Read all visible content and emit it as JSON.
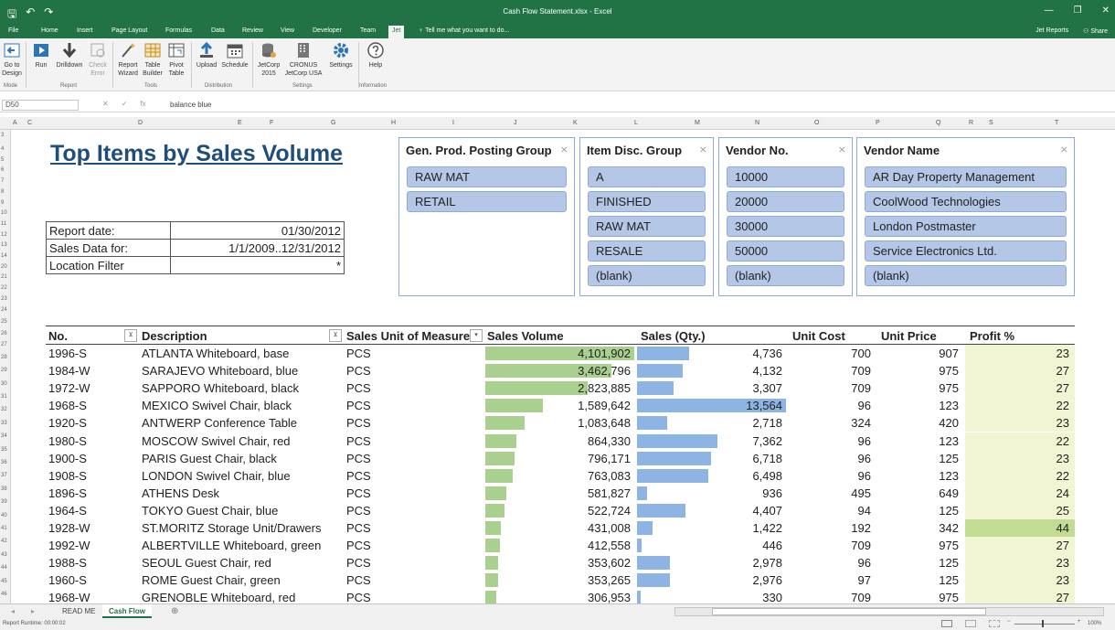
{
  "window": {
    "title": "Cash Flow Statement.xlsx - Excel",
    "minimize_glyph": "—",
    "restore_glyph": "❐",
    "close_glyph": "✕"
  },
  "qat": {
    "save_glyph": "🖫",
    "undo_glyph": "↶",
    "redo_glyph": "↷"
  },
  "tabs": [
    "File",
    "Home",
    "Insert",
    "Page Layout",
    "Formulas",
    "Data",
    "Review",
    "View",
    "Developer",
    "Team",
    "Jet"
  ],
  "tell_me": "Tell me what you want to do...",
  "account": {
    "jet_reports": "Jet Reports",
    "share": "Share"
  },
  "ribbon": {
    "buttons": [
      {
        "label": "Go to\nDesign",
        "icon": "go-to-design-icon"
      },
      {
        "label": "Run",
        "icon": "run-icon"
      },
      {
        "label": "Drilldown",
        "icon": "drilldown-icon"
      },
      {
        "label": "Check\nError",
        "icon": "check-error-icon"
      },
      {
        "label": "Report\nWizard",
        "icon": "report-wizard-icon"
      },
      {
        "label": "Table\nBuilder",
        "icon": "table-builder-icon"
      },
      {
        "label": "Pivot\nTable",
        "icon": "pivot-table-icon"
      },
      {
        "label": "Upload",
        "icon": "upload-icon"
      },
      {
        "label": "Schedule",
        "icon": "schedule-icon"
      },
      {
        "label": "JetCorp\n2015",
        "icon": "database-icon"
      },
      {
        "label": "CRONUS\nJetCorp USA",
        "icon": "company-icon"
      },
      {
        "label": "Settings",
        "icon": "settings-icon"
      },
      {
        "label": "Help",
        "icon": "help-icon"
      }
    ],
    "groups": [
      "Mode",
      "Report",
      "Tools",
      "Distribution",
      "Settings",
      "Information"
    ]
  },
  "formula_bar": {
    "name_box": "D50",
    "fx_label": "fx",
    "value": "balance blue"
  },
  "columns": [
    "A",
    "C",
    "D",
    "E",
    "F",
    "G",
    "H",
    "I",
    "J",
    "K",
    "L",
    "M",
    "N",
    "O",
    "P",
    "Q",
    "R",
    "S",
    "T"
  ],
  "rows": [
    "3",
    "4",
    "5",
    "6",
    "7",
    "8",
    "9",
    "10",
    "11",
    "12",
    "13",
    "14",
    "20",
    "21",
    "22",
    "23",
    "24",
    "25",
    "26",
    "27",
    "28",
    "29",
    "30",
    "31",
    "32",
    "33",
    "34",
    "35",
    "36",
    "37",
    "38",
    "39",
    "40",
    "41",
    "42",
    "43",
    "44",
    "45",
    "46",
    "47"
  ],
  "report": {
    "title": "Top Items by Sales Volume",
    "info": [
      {
        "label": "Report date:",
        "value": "01/30/2012"
      },
      {
        "label": "Sales Data for:",
        "value": "1/1/2009..12/31/2012"
      },
      {
        "label": "Location Filter",
        "value": "*"
      }
    ]
  },
  "slicers": [
    {
      "title": "Gen. Prod. Posting Group",
      "items": [
        "RAW MAT",
        "RETAIL"
      ]
    },
    {
      "title": "Item Disc. Group",
      "items": [
        "A",
        "FINISHED",
        "RAW MAT",
        "RESALE",
        "(blank)"
      ]
    },
    {
      "title": "Vendor No.",
      "items": [
        "10000",
        "20000",
        "30000",
        "50000",
        "(blank)"
      ]
    },
    {
      "title": "Vendor Name",
      "items": [
        "AR Day Property Management",
        "CoolWood Technologies",
        "London Postmaster",
        "Service Electronics Ltd.",
        "(blank)"
      ]
    }
  ],
  "slicer_clear_glyph": "⨯",
  "table": {
    "headers": [
      "No.",
      "Description",
      "Sales Unit of Measure",
      "Sales Volume",
      "Sales (Qty.)",
      "Unit Cost",
      "Unit Price",
      "Profit %"
    ],
    "filter_glyph": "⊻",
    "sort_glyph": "▾",
    "sales_volume_max": 4101902,
    "qty_max": 13564,
    "colors": {
      "volume_bar": "#a9d08e",
      "qty_bar": "#8eb4e3",
      "profit_light": "#f2f5d3",
      "profit_dark": "#c2dc94"
    },
    "rows": [
      {
        "no": "1996-S",
        "desc": "ATLANTA Whiteboard, base",
        "uom": "PCS",
        "volume": "4,101,902",
        "vol": 4101902,
        "qty": "4,736",
        "qn": 4736,
        "cost": "700",
        "price": "907",
        "profit": "23"
      },
      {
        "no": "1984-W",
        "desc": "SARAJEVO Whiteboard, blue",
        "uom": "PCS",
        "volume": "3,462,796",
        "vol": 3462796,
        "qty": "4,132",
        "qn": 4132,
        "cost": "709",
        "price": "975",
        "profit": "27"
      },
      {
        "no": "1972-W",
        "desc": "SAPPORO Whiteboard, black",
        "uom": "PCS",
        "volume": "2,823,885",
        "vol": 2823885,
        "qty": "3,307",
        "qn": 3307,
        "cost": "709",
        "price": "975",
        "profit": "27"
      },
      {
        "no": "1968-S",
        "desc": "MEXICO Swivel Chair, black",
        "uom": "PCS",
        "volume": "1,589,642",
        "vol": 1589642,
        "qty": "13,564",
        "qn": 13564,
        "cost": "96",
        "price": "123",
        "profit": "22"
      },
      {
        "no": "1920-S",
        "desc": "ANTWERP Conference Table",
        "uom": "PCS",
        "volume": "1,083,648",
        "vol": 1083648,
        "qty": "2,718",
        "qn": 2718,
        "cost": "324",
        "price": "420",
        "profit": "23"
      },
      {
        "no": "1980-S",
        "desc": "MOSCOW Swivel Chair, red",
        "uom": "PCS",
        "volume": "864,330",
        "vol": 864330,
        "qty": "7,362",
        "qn": 7362,
        "cost": "96",
        "price": "123",
        "profit": "22"
      },
      {
        "no": "1900-S",
        "desc": "PARIS Guest Chair, black",
        "uom": "PCS",
        "volume": "796,171",
        "vol": 796171,
        "qty": "6,718",
        "qn": 6718,
        "cost": "96",
        "price": "125",
        "profit": "23"
      },
      {
        "no": "1908-S",
        "desc": "LONDON Swivel Chair, blue",
        "uom": "PCS",
        "volume": "763,083",
        "vol": 763083,
        "qty": "6,498",
        "qn": 6498,
        "cost": "96",
        "price": "123",
        "profit": "22"
      },
      {
        "no": "1896-S",
        "desc": "ATHENS Desk",
        "uom": "PCS",
        "volume": "581,827",
        "vol": 581827,
        "qty": "936",
        "qn": 936,
        "cost": "495",
        "price": "649",
        "profit": "24"
      },
      {
        "no": "1964-S",
        "desc": "TOKYO Guest Chair, blue",
        "uom": "PCS",
        "volume": "522,724",
        "vol": 522724,
        "qty": "4,407",
        "qn": 4407,
        "cost": "94",
        "price": "125",
        "profit": "25"
      },
      {
        "no": "1928-W",
        "desc": "ST.MORITZ Storage Unit/Drawers",
        "uom": "PCS",
        "volume": "431,008",
        "vol": 431008,
        "qty": "1,422",
        "qn": 1422,
        "cost": "192",
        "price": "342",
        "profit": "44"
      },
      {
        "no": "1992-W",
        "desc": "ALBERTVILLE Whiteboard, green",
        "uom": "PCS",
        "volume": "412,558",
        "vol": 412558,
        "qty": "446",
        "qn": 446,
        "cost": "709",
        "price": "975",
        "profit": "27"
      },
      {
        "no": "1988-S",
        "desc": "SEOUL Guest Chair, red",
        "uom": "PCS",
        "volume": "353,602",
        "vol": 353602,
        "qty": "2,978",
        "qn": 2978,
        "cost": "96",
        "price": "125",
        "profit": "23"
      },
      {
        "no": "1960-S",
        "desc": "ROME Guest Chair, green",
        "uom": "PCS",
        "volume": "353,265",
        "vol": 353265,
        "qty": "2,976",
        "qn": 2976,
        "cost": "97",
        "price": "125",
        "profit": "23"
      },
      {
        "no": "1968-W",
        "desc": "GRENOBLE Whiteboard, red",
        "uom": "PCS",
        "volume": "306,953",
        "vol": 306953,
        "qty": "330",
        "qn": 330,
        "cost": "709",
        "price": "975",
        "profit": "27"
      }
    ]
  },
  "sheet_tabs": [
    "READ ME",
    "Cash Flow"
  ],
  "add_sheet_glyph": "⊕",
  "status": {
    "runtime": "Report Runtime: 00:00:02",
    "zoom": "100%"
  }
}
